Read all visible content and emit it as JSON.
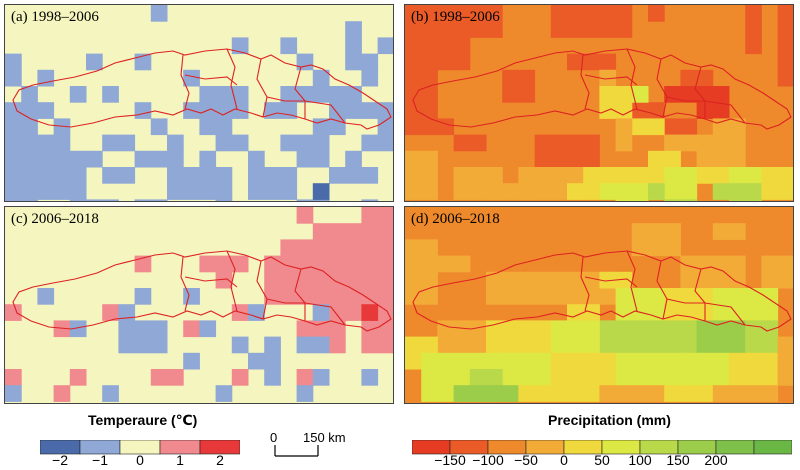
{
  "panels": [
    {
      "label": "(a) 1998–2006",
      "variable": "temperature"
    },
    {
      "label": "(b) 1998–2006",
      "variable": "precipitation"
    },
    {
      "label": "(c) 2006–2018",
      "variable": "temperature"
    },
    {
      "label": "(d) 2006–2018",
      "variable": "precipitation"
    }
  ],
  "temperature_legend": {
    "title": "Temperaure (℃)",
    "colors": [
      "#4a6aaa",
      "#8fa8d6",
      "#f5f5c0",
      "#f08a8e",
      "#e8393a"
    ],
    "ticks": [
      "−2",
      "−1",
      "0",
      "1",
      "2"
    ]
  },
  "scale_bar": {
    "zero": "0",
    "label": "150 km"
  },
  "precipitation_legend": {
    "title": "Precipitation (mm)",
    "colors": [
      "#e53c23",
      "#ea5b28",
      "#ef8a2c",
      "#f3ab37",
      "#f0d93c",
      "#dce843",
      "#b9d94a",
      "#9bcc4a",
      "#7fc04a",
      "#6ab745"
    ],
    "ticks": [
      "−150",
      "−100",
      "−50",
      "0",
      "50",
      "100",
      "150",
      "200"
    ]
  },
  "colors": {
    "boundary": "#dd2222",
    "temp_base": "#f5f5c0",
    "temp_neg": "#8fa8d6",
    "temp_neg2": "#4a6aaa",
    "temp_pos": "#f08a8e",
    "temp_pos2": "#e8393a",
    "prec_base": "#ef8a2c",
    "prec_neg": "#ea5b28",
    "prec_neg2": "#e53c23",
    "prec_warm": "#f3ab37",
    "prec_yellow": "#f0d93c",
    "prec_lime": "#dce843",
    "prec_green": "#b9d94a",
    "prec_green2": "#9bcc4a"
  }
}
